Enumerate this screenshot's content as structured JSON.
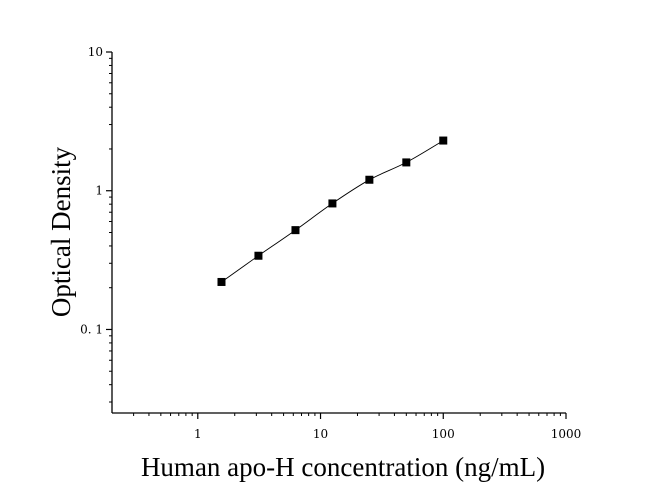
{
  "chart_data": {
    "type": "scatter",
    "xlabel": "Human apo-H concentration (ng/mL)",
    "ylabel": "Optical Density",
    "xscale": "log",
    "yscale": "log",
    "xlim": [
      0.2,
      1000
    ],
    "ylim": [
      0.025,
      10
    ],
    "x_ticks": [
      1,
      10,
      100,
      1000
    ],
    "x_tick_labels": [
      "1",
      "10",
      "100",
      "1000"
    ],
    "y_ticks": [
      0.1,
      1,
      10
    ],
    "y_tick_labels": [
      "0. 1",
      "1",
      "10"
    ],
    "grid": false,
    "legend": "none",
    "series": [
      {
        "x": [
          1.56,
          3.12,
          6.25,
          12.5,
          25,
          50,
          100
        ],
        "y": [
          0.22,
          0.34,
          0.52,
          0.81,
          1.2,
          1.6,
          2.3
        ],
        "marker": "square",
        "fit_line": true
      }
    ]
  }
}
